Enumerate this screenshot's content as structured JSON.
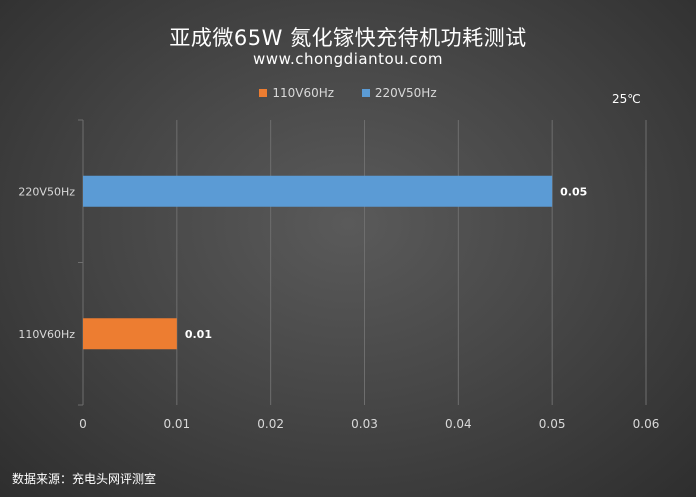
{
  "chart_data": {
    "type": "bar",
    "orientation": "horizontal",
    "title": "亚成微65W 氮化镓快充待机功耗测试",
    "subtitle": "www.chongdiantou.com",
    "note": "25℃",
    "source": "数据来源：充电头网评测室",
    "categories": [
      "220V50Hz",
      "110V60Hz"
    ],
    "values": [
      0.05,
      0.01
    ],
    "value_labels": [
      "0.05",
      "0.01"
    ],
    "colors": [
      "#5b9bd5",
      "#ed7d31"
    ],
    "legend": [
      {
        "name": "110V60Hz",
        "color": "#ed7d31"
      },
      {
        "name": "220V50Hz",
        "color": "#5b9bd5"
      }
    ],
    "xlim": [
      0,
      0.06
    ],
    "xticks": [
      "0",
      "0.01",
      "0.02",
      "0.03",
      "0.04",
      "0.05",
      "0.06"
    ],
    "grid": true,
    "xlabel": "",
    "ylabel": ""
  }
}
